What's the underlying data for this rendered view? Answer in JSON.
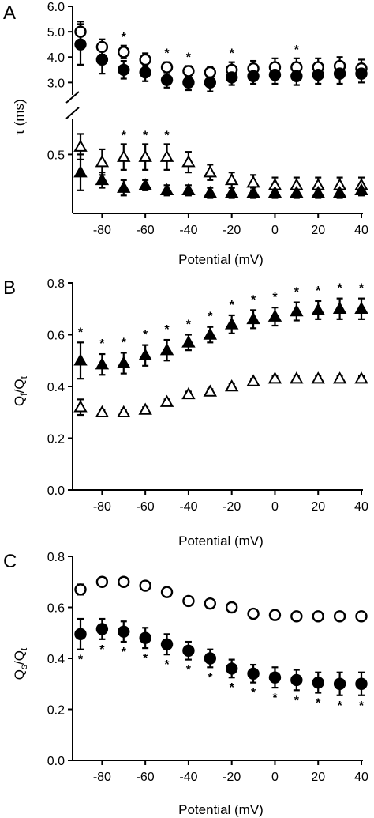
{
  "chart_data": [
    {
      "type": "scatter",
      "panel": "A",
      "xlabel": "Potential (mV)",
      "ylabel": "τ (ms)",
      "xlim": [
        -95,
        40
      ],
      "x_ticks": [
        "-80",
        "-60",
        "-40",
        "-20",
        "0",
        "20",
        "40"
      ],
      "x": [
        -90,
        -80,
        -70,
        -60,
        -50,
        -40,
        -30,
        -20,
        -10,
        0,
        10,
        20,
        30,
        40
      ],
      "upper_segment": {
        "ylim": [
          2.7,
          6.0
        ],
        "y_ticks": [
          "3.0",
          "4.0",
          "5.0",
          "6.0"
        ],
        "series": [
          {
            "marker": "open-circle",
            "values": [
              5.0,
              4.4,
              4.2,
              3.9,
              3.6,
              3.45,
              3.4,
              3.5,
              3.55,
              3.6,
              3.6,
              3.6,
              3.65,
              3.55
            ],
            "errors": [
              0.4,
              0.3,
              0.25,
              0.25,
              0.2,
              0.2,
              0.2,
              0.3,
              0.3,
              0.35,
              0.35,
              0.35,
              0.35,
              0.35
            ]
          },
          {
            "marker": "filled-circle",
            "values": [
              4.5,
              3.9,
              3.5,
              3.4,
              3.1,
              3.0,
              3.0,
              3.2,
              3.25,
              3.3,
              3.25,
              3.3,
              3.35,
              3.35
            ],
            "errors": [
              0.8,
              0.55,
              0.35,
              0.35,
              0.3,
              0.3,
              0.35,
              0.3,
              0.3,
              0.35,
              0.35,
              0.35,
              0.4,
              0.35
            ]
          }
        ],
        "significance_x": [
          -70,
          -50,
          -40,
          -20,
          10
        ]
      },
      "lower_segment": {
        "ylim": [
          0.27,
          0.64
        ],
        "y_ticks": [
          "0.5"
        ],
        "series": [
          {
            "marker": "open-triangle",
            "values": [
              0.53,
              0.47,
              0.49,
              0.49,
              0.49,
              0.47,
              0.43,
              0.4,
              0.39,
              0.38,
              0.38,
              0.38,
              0.38,
              0.38
            ],
            "errors": [
              0.05,
              0.05,
              0.05,
              0.05,
              0.05,
              0.04,
              0.03,
              0.03,
              0.03,
              0.03,
              0.03,
              0.03,
              0.03,
              0.03
            ]
          },
          {
            "marker": "filled-triangle",
            "values": [
              0.43,
              0.4,
              0.37,
              0.38,
              0.36,
              0.36,
              0.35,
              0.35,
              0.35,
              0.35,
              0.35,
              0.35,
              0.35,
              0.36
            ],
            "errors": [
              0.07,
              0.03,
              0.03,
              0.02,
              0.02,
              0.02,
              0.02,
              0.02,
              0.02,
              0.02,
              0.02,
              0.02,
              0.02,
              0.02
            ]
          }
        ],
        "significance_x": [
          -70,
          -60,
          -50
        ]
      },
      "significance_mark": "*"
    },
    {
      "type": "scatter",
      "panel": "B",
      "xlabel": "Potential (mV)",
      "ylabel": "Qf/Qt",
      "ylabel_main": "Q",
      "ylabel_sub1": "f",
      "ylabel_slash": "/Q",
      "ylabel_sub2": "t",
      "xlim": [
        -95,
        40
      ],
      "ylim": [
        0,
        0.8
      ],
      "x_ticks": [
        "-80",
        "-60",
        "-40",
        "-20",
        "0",
        "20",
        "40"
      ],
      "y_ticks": [
        "0.0",
        "0.2",
        "0.4",
        "0.6",
        "0.8"
      ],
      "x": [
        -90,
        -80,
        -70,
        -60,
        -50,
        -40,
        -30,
        -20,
        -10,
        0,
        10,
        20,
        30,
        40
      ],
      "series": [
        {
          "marker": "filled-triangle",
          "values": [
            0.5,
            0.485,
            0.49,
            0.52,
            0.54,
            0.57,
            0.6,
            0.64,
            0.66,
            0.67,
            0.69,
            0.695,
            0.7,
            0.7
          ],
          "errors": [
            0.07,
            0.04,
            0.04,
            0.04,
            0.04,
            0.03,
            0.03,
            0.035,
            0.035,
            0.035,
            0.035,
            0.035,
            0.04,
            0.04
          ]
        },
        {
          "marker": "open-triangle",
          "values": [
            0.32,
            0.3,
            0.3,
            0.31,
            0.34,
            0.37,
            0.38,
            0.4,
            0.42,
            0.43,
            0.43,
            0.43,
            0.43,
            0.43
          ],
          "errors": [
            0.03,
            0.01,
            0.01,
            0.01,
            0.01,
            0.01,
            0.01,
            0.01,
            0.01,
            0.01,
            0.01,
            0.01,
            0.01,
            0.01
          ]
        }
      ],
      "significance_x": [
        -90,
        -80,
        -70,
        -60,
        -50,
        -40,
        -30,
        -20,
        -10,
        0,
        10,
        20,
        30,
        40
      ],
      "significance_mark": "*"
    },
    {
      "type": "scatter",
      "panel": "C",
      "xlabel": "Potential (mV)",
      "ylabel": "Qs/Qt",
      "ylabel_main": "Q",
      "ylabel_sub1": "s",
      "ylabel_slash": "/Q",
      "ylabel_sub2": "t",
      "xlim": [
        -95,
        40
      ],
      "ylim": [
        0,
        0.8
      ],
      "x_ticks": [
        "-80",
        "-60",
        "-40",
        "-20",
        "0",
        "20",
        "40"
      ],
      "y_ticks": [
        "0.0",
        "0.2",
        "0.4",
        "0.6",
        "0.8"
      ],
      "x": [
        -90,
        -80,
        -70,
        -60,
        -50,
        -40,
        -30,
        -20,
        -10,
        0,
        10,
        20,
        30,
        40
      ],
      "series": [
        {
          "marker": "open-circle",
          "values": [
            0.67,
            0.7,
            0.7,
            0.685,
            0.66,
            0.625,
            0.615,
            0.6,
            0.575,
            0.57,
            0.565,
            0.565,
            0.565,
            0.565
          ],
          "errors": [
            0.02,
            0.01,
            0.01,
            0.01,
            0.01,
            0.01,
            0.01,
            0.01,
            0.01,
            0.01,
            0.01,
            0.01,
            0.01,
            0.01
          ]
        },
        {
          "marker": "filled-circle",
          "values": [
            0.495,
            0.515,
            0.505,
            0.48,
            0.455,
            0.43,
            0.4,
            0.36,
            0.34,
            0.325,
            0.315,
            0.305,
            0.3,
            0.3
          ],
          "errors": [
            0.06,
            0.04,
            0.04,
            0.04,
            0.04,
            0.035,
            0.035,
            0.035,
            0.035,
            0.04,
            0.04,
            0.04,
            0.045,
            0.045
          ]
        }
      ],
      "significance_x": [
        -90,
        -80,
        -70,
        -60,
        -50,
        -40,
        -30,
        -20,
        -10,
        0,
        10,
        20,
        30,
        40
      ],
      "significance_mark": "*"
    }
  ]
}
